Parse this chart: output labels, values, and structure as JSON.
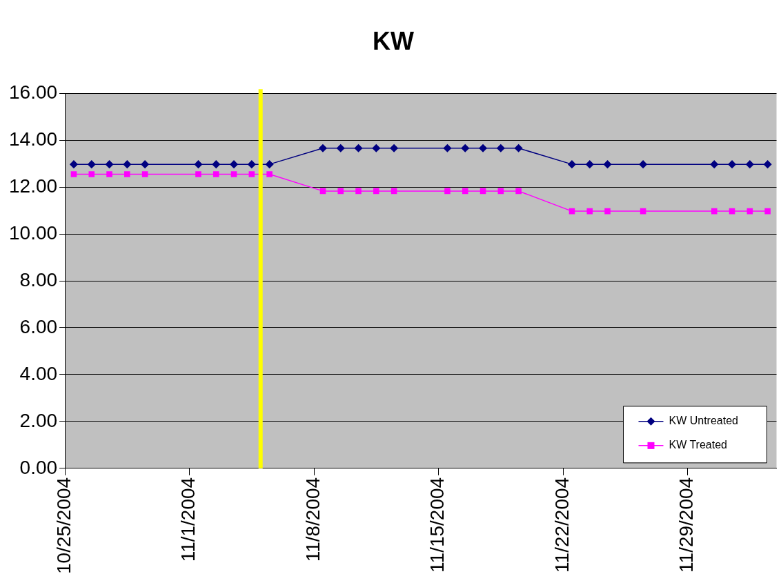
{
  "chart_data": {
    "type": "line",
    "title": "KW",
    "x": [
      "2004-10-25T12:00",
      "2004-10-26T12:00",
      "2004-10-27T12:00",
      "2004-10-28T12:00",
      "2004-10-29T12:00",
      "2004-11-01T12:00",
      "2004-11-02T12:00",
      "2004-11-03T12:00",
      "2004-11-04T12:00",
      "2004-11-05T12:00",
      "2004-11-08T12:00",
      "2004-11-09T12:00",
      "2004-11-10T12:00",
      "2004-11-11T12:00",
      "2004-11-12T12:00",
      "2004-11-15T12:00",
      "2004-11-16T12:00",
      "2004-11-17T12:00",
      "2004-11-18T12:00",
      "2004-11-19T12:00",
      "2004-11-22T12:00",
      "2004-11-23T12:00",
      "2004-11-24T12:00",
      "2004-11-26T12:00",
      "2004-11-30T12:00",
      "2004-12-01T12:00",
      "2004-12-02T12:00",
      "2004-12-03T12:00"
    ],
    "series": [
      {
        "name": "KW Untreated",
        "color": "#000080",
        "marker": "diamond",
        "values": [
          12.97,
          12.97,
          12.97,
          12.97,
          12.97,
          12.97,
          12.97,
          12.97,
          12.97,
          12.97,
          13.66,
          13.66,
          13.66,
          13.66,
          13.66,
          13.66,
          13.66,
          13.66,
          13.66,
          13.66,
          12.97,
          12.97,
          12.97,
          12.97,
          12.97,
          12.97,
          12.97,
          12.97
        ]
      },
      {
        "name": "KW Treated",
        "color": "#ff00ff",
        "marker": "square",
        "values": [
          12.55,
          12.55,
          12.55,
          12.55,
          12.55,
          12.55,
          12.55,
          12.55,
          12.55,
          12.55,
          11.83,
          11.83,
          11.83,
          11.83,
          11.83,
          11.83,
          11.83,
          11.83,
          11.83,
          11.83,
          10.97,
          10.97,
          10.97,
          10.97,
          10.97,
          10.97,
          10.97,
          10.97
        ]
      }
    ],
    "xlim": [
      "2004-10-25",
      "2004-12-04"
    ],
    "xticks": [
      {
        "value": "2004-10-25",
        "label": "10/25/2004"
      },
      {
        "value": "2004-11-01",
        "label": "11/1/2004"
      },
      {
        "value": "2004-11-08",
        "label": "11/8/2004"
      },
      {
        "value": "2004-11-15",
        "label": "11/15/2004"
      },
      {
        "value": "2004-11-22",
        "label": "11/22/2004"
      },
      {
        "value": "2004-11-29",
        "label": "11/29/2004"
      }
    ],
    "ylim": [
      0,
      16
    ],
    "yticks": [
      {
        "value": 0,
        "label": "0.00"
      },
      {
        "value": 2,
        "label": "2.00"
      },
      {
        "value": 4,
        "label": "4.00"
      },
      {
        "value": 6,
        "label": "6.00"
      },
      {
        "value": 8,
        "label": "8.00"
      },
      {
        "value": 10,
        "label": "10.00"
      },
      {
        "value": 12,
        "label": "12.00"
      },
      {
        "value": 14,
        "label": "14.00"
      },
      {
        "value": 16,
        "label": "16.00"
      }
    ],
    "grid": "y",
    "legend": "bottom right",
    "ref_lines": [
      {
        "axis": "x",
        "value": "2004-11-05",
        "color": "#ffff00"
      }
    ]
  }
}
